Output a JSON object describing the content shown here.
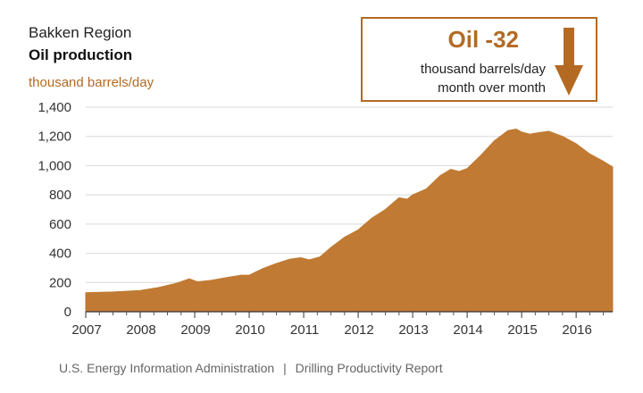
{
  "header": {
    "region": "Bakken Region",
    "title": "Oil production",
    "unit": "thousand barrels/day"
  },
  "callout": {
    "value": "Oil -32",
    "line1": "thousand barrels/day",
    "line2": "month over month",
    "arrow_icon": "down-arrow-icon"
  },
  "footer": {
    "agency": "U.S. Energy Information Administration",
    "separator": "|",
    "report": "Drilling Productivity Report"
  },
  "colors": {
    "accent": "#b46a23",
    "area": "#c07a33"
  },
  "chart_data": {
    "type": "area",
    "ylabel": "thousand barrels/day",
    "ylim": [
      0,
      1400
    ],
    "xlim": [
      2007,
      2016.67
    ],
    "yticks": [
      0,
      200,
      400,
      600,
      800,
      1000,
      1200,
      1400
    ],
    "ytick_labels": [
      "0",
      "200",
      "400",
      "600",
      "800",
      "1,000",
      "1,200",
      "1,400"
    ],
    "xticks": [
      2007,
      2008,
      2009,
      2010,
      2011,
      2012,
      2013,
      2014,
      2015,
      2016
    ],
    "xtick_labels": [
      "2007",
      "2008",
      "2009",
      "2010",
      "2011",
      "2012",
      "2013",
      "2014",
      "2015",
      "2016"
    ],
    "grid": true,
    "x": [
      2007.0,
      2007.5,
      2008.0,
      2008.33,
      2008.67,
      2008.9,
      2009.05,
      2009.3,
      2009.6,
      2009.85,
      2010.0,
      2010.25,
      2010.5,
      2010.75,
      2010.95,
      2011.1,
      2011.3,
      2011.5,
      2011.75,
      2012.0,
      2012.25,
      2012.5,
      2012.75,
      2012.9,
      2013.0,
      2013.25,
      2013.5,
      2013.7,
      2013.85,
      2014.0,
      2014.25,
      2014.5,
      2014.75,
      2014.9,
      2015.0,
      2015.15,
      2015.3,
      2015.5,
      2015.75,
      2016.0,
      2016.25,
      2016.5,
      2016.67
    ],
    "y": [
      130,
      135,
      145,
      165,
      195,
      225,
      205,
      215,
      235,
      250,
      250,
      295,
      330,
      360,
      370,
      355,
      375,
      440,
      510,
      560,
      640,
      700,
      780,
      770,
      800,
      840,
      930,
      975,
      960,
      980,
      1070,
      1170,
      1240,
      1250,
      1230,
      1215,
      1225,
      1235,
      1200,
      1150,
      1080,
      1030,
      990
    ]
  }
}
